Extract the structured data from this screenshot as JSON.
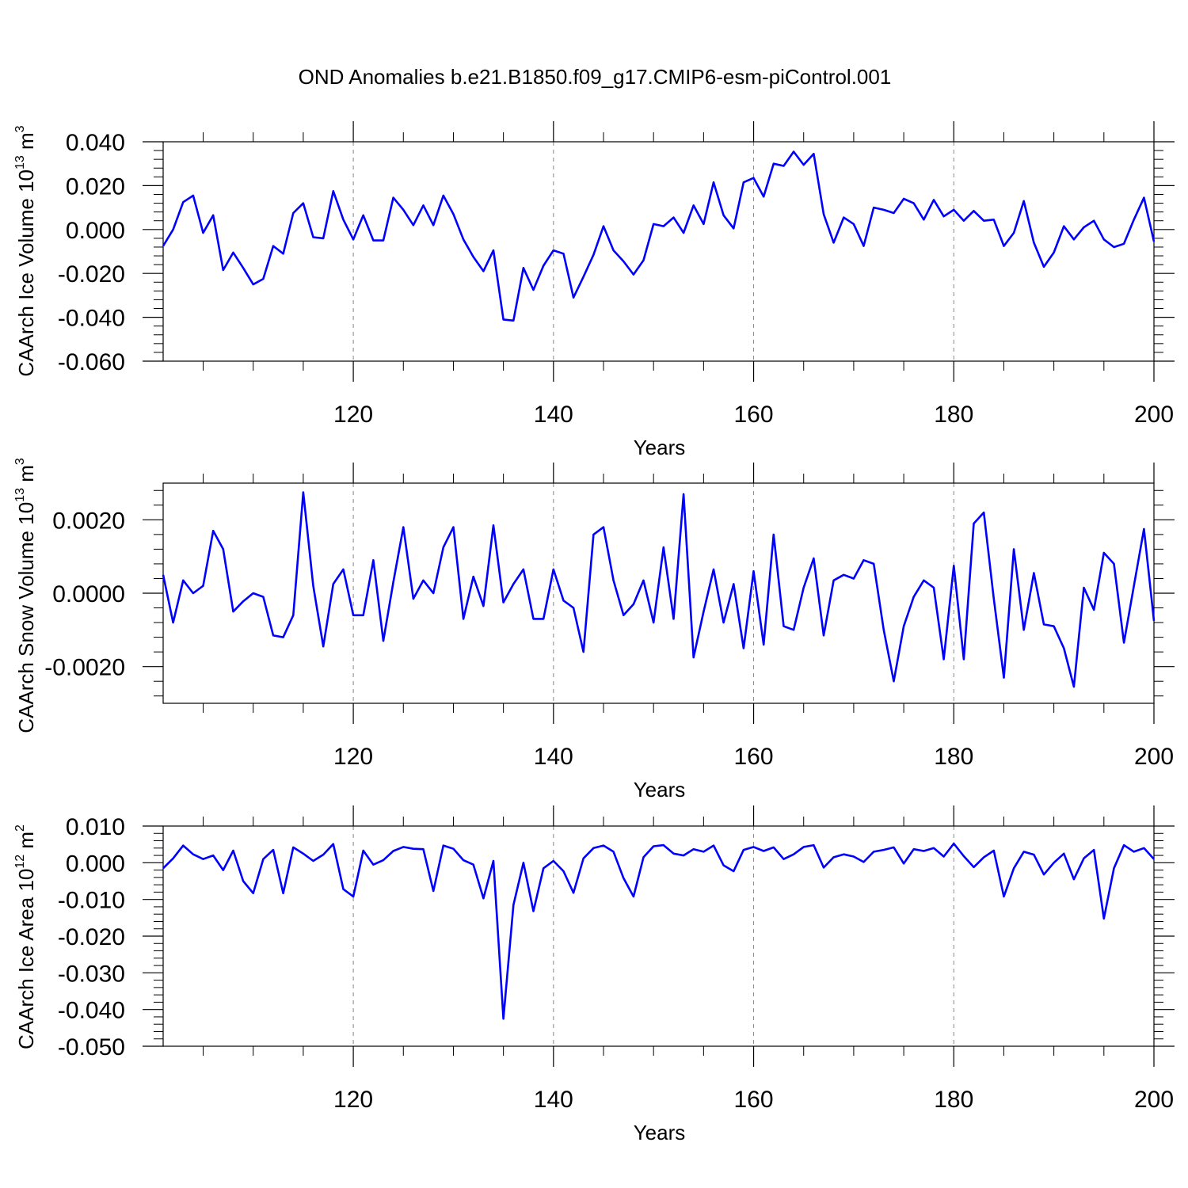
{
  "title": "OND Anomalies b.e21.B1850.f09_g17.CMIP6-esm-piControl.001",
  "colors": {
    "line": "#0000ff",
    "axis": "#000000",
    "grid": "#888888",
    "background": "#ffffff"
  },
  "chart_data": [
    {
      "type": "line",
      "xlabel": "Years",
      "ylabel": {
        "text": "CAArch Ice Volume 10",
        "exp": "13",
        "unit": " m",
        "unit_exp": "3"
      },
      "xlim": [
        101,
        200
      ],
      "ylim": [
        -0.06,
        0.04
      ],
      "xticks": [
        120,
        140,
        160,
        180,
        200
      ],
      "yticks": [
        -0.06,
        -0.04,
        -0.02,
        0.0,
        0.02,
        0.04
      ],
      "ytick_labels": [
        "-0.060",
        "-0.040",
        "-0.020",
        "0.000",
        "0.020",
        "0.040"
      ],
      "x_start": 101,
      "values": [
        -0.0075,
        0.0,
        0.0125,
        0.0155,
        -0.0015,
        0.0065,
        -0.0185,
        -0.0105,
        -0.0175,
        -0.025,
        -0.0225,
        -0.0075,
        -0.011,
        0.0075,
        0.012,
        -0.0035,
        -0.004,
        0.0175,
        0.0045,
        -0.0045,
        0.0065,
        -0.005,
        -0.005,
        0.0145,
        0.009,
        0.002,
        0.011,
        0.002,
        0.0155,
        0.007,
        -0.0045,
        -0.0125,
        -0.019,
        -0.0095,
        -0.041,
        -0.0415,
        -0.0175,
        -0.0275,
        -0.0165,
        -0.0095,
        -0.011,
        -0.031,
        -0.0215,
        -0.0115,
        0.0015,
        -0.0095,
        -0.0145,
        -0.0205,
        -0.014,
        0.0025,
        0.0015,
        0.0055,
        -0.0015,
        0.011,
        0.0025,
        0.0215,
        0.0065,
        0.0005,
        0.0215,
        0.0235,
        0.015,
        0.03,
        0.029,
        0.0355,
        0.0295,
        0.0345,
        0.007,
        -0.006,
        0.0055,
        0.0025,
        -0.0075,
        0.01,
        0.009,
        0.0075,
        0.014,
        0.012,
        0.0045,
        0.0135,
        0.006,
        0.009,
        0.004,
        0.0085,
        0.004,
        0.0045,
        -0.0075,
        -0.0015,
        0.013,
        -0.006,
        -0.017,
        -0.0105,
        0.0015,
        -0.0045,
        0.001,
        0.004,
        -0.0045,
        -0.008,
        -0.0065,
        0.0045,
        0.0145,
        -0.0055
      ]
    },
    {
      "type": "line",
      "xlabel": "Years",
      "ylabel": {
        "text": "CAArch Snow Volume 10",
        "exp": "13",
        "unit": " m",
        "unit_exp": "3"
      },
      "xlim": [
        101,
        200
      ],
      "ylim": [
        -0.003,
        0.003
      ],
      "xticks": [
        120,
        140,
        160,
        180,
        200
      ],
      "yticks": [
        -0.002,
        0.0,
        0.002
      ],
      "ytick_labels": [
        "-0.0020",
        "0.0000",
        "0.0020"
      ],
      "x_start": 101,
      "values": [
        0.0005,
        -0.0008,
        0.00035,
        0.0,
        0.0002,
        0.0017,
        0.0012,
        -0.0005,
        -0.00022,
        0.0,
        -0.0001,
        -0.00115,
        -0.0012,
        -0.0006,
        0.00275,
        0.0002,
        -0.00145,
        0.00025,
        0.00065,
        -0.0006,
        -0.0006,
        0.0009,
        -0.0013,
        0.0003,
        0.0018,
        -0.00015,
        0.00035,
        0.0,
        0.00125,
        0.0018,
        -0.0007,
        0.00045,
        -0.00035,
        0.00185,
        -0.00025,
        0.00025,
        0.00065,
        -0.0007,
        -0.0007,
        0.00065,
        -0.0002,
        -0.0004,
        -0.0016,
        0.0016,
        0.0018,
        0.00035,
        -0.0006,
        -0.0003,
        0.00035,
        -0.0008,
        0.00125,
        -0.0007,
        0.0027,
        -0.00175,
        -0.0005,
        0.00065,
        -0.0008,
        0.00025,
        -0.0015,
        0.0006,
        -0.0014,
        0.0016,
        -0.0009,
        -0.001,
        0.00015,
        0.00095,
        -0.00115,
        0.00035,
        0.0005,
        0.0004,
        0.0009,
        0.0008,
        -0.001,
        -0.0024,
        -0.0009,
        -0.0001,
        0.00035,
        0.00015,
        -0.0018,
        0.00075,
        -0.0018,
        0.0019,
        0.0022,
        -0.00015,
        -0.0023,
        0.0012,
        -0.001,
        0.00055,
        -0.00085,
        -0.0009,
        -0.0015,
        -0.00255,
        0.00015,
        -0.00045,
        0.0011,
        0.0008,
        -0.00135,
        0.0002,
        0.00175,
        -0.00075
      ]
    },
    {
      "type": "line",
      "xlabel": "Years",
      "ylabel": {
        "text": "CAArch Ice Area 10",
        "exp": "12",
        "unit": " m",
        "unit_exp": "2"
      },
      "xlim": [
        101,
        200
      ],
      "ylim": [
        -0.05,
        0.01
      ],
      "xticks": [
        120,
        140,
        160,
        180,
        200
      ],
      "yticks": [
        -0.05,
        -0.04,
        -0.03,
        -0.02,
        -0.01,
        0.0,
        0.01
      ],
      "ytick_labels": [
        "-0.050",
        "-0.040",
        "-0.030",
        "-0.020",
        "-0.010",
        "0.000",
        "0.010"
      ],
      "x_start": 101,
      "values": [
        -0.0015,
        0.0012,
        0.0047,
        0.0023,
        0.001,
        0.002,
        -0.002,
        0.0033,
        -0.005,
        -0.0083,
        0.001,
        0.0035,
        -0.0083,
        0.0042,
        0.0025,
        0.0005,
        0.0022,
        0.0051,
        -0.0072,
        -0.0092,
        0.0033,
        -0.0005,
        0.0007,
        0.0032,
        0.0043,
        0.0038,
        0.0037,
        -0.0077,
        0.0047,
        0.0038,
        0.0007,
        -0.0005,
        -0.0097,
        0.0005,
        -0.0425,
        -0.0115,
        0.0,
        -0.0132,
        -0.0015,
        0.0005,
        -0.0023,
        -0.0082,
        0.0012,
        0.004,
        0.0047,
        0.003,
        -0.0042,
        -0.0092,
        0.0015,
        0.0045,
        0.0048,
        0.0025,
        0.002,
        0.0037,
        0.003,
        0.0047,
        -0.0007,
        -0.0023,
        0.0035,
        0.0043,
        0.0032,
        0.0042,
        0.001,
        0.0023,
        0.0043,
        0.0048,
        -0.0013,
        0.0015,
        0.0023,
        0.0017,
        0.0002,
        0.003,
        0.0035,
        0.0042,
        -0.0002,
        0.0037,
        0.0032,
        0.004,
        0.0017,
        0.0052,
        0.0018,
        -0.0012,
        0.0015,
        0.0033,
        -0.0092,
        -0.0015,
        0.003,
        0.0022,
        -0.0032,
        0.0,
        0.0025,
        -0.0045,
        0.0012,
        0.0035,
        -0.0152,
        -0.0015,
        0.0048,
        0.003,
        0.004,
        0.001
      ]
    }
  ]
}
